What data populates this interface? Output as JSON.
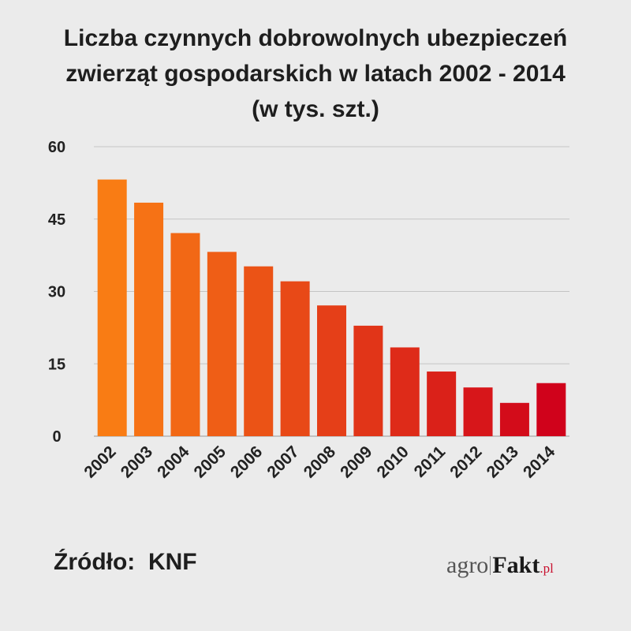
{
  "title_lines": [
    "Liczba czynnych dobrowolnych ubezpieczeń",
    "zwierząt gospodarskich w latach 2002 - 2014",
    "(w tys. szt.)"
  ],
  "source_text": "Źródło:  KNF",
  "logo": {
    "part1": "agro",
    "part2": "Fakt",
    "part3": ".pl"
  },
  "chart_data": {
    "type": "bar",
    "title": "Liczba czynnych dobrowolnych ubezpieczeń zwierząt gospodarskich w latach 2002 - 2014 (w tys. szt.)",
    "categories": [
      "2002",
      "2003",
      "2004",
      "2005",
      "2006",
      "2007",
      "2008",
      "2009",
      "2010",
      "2011",
      "2012",
      "2013",
      "2014"
    ],
    "values": [
      53.2,
      48.4,
      42.1,
      38.2,
      35.2,
      32.1,
      27.1,
      22.9,
      18.4,
      13.4,
      10.1,
      6.9,
      11.0
    ],
    "xlabel": "",
    "ylabel": "",
    "ylim": [
      0,
      60
    ],
    "yticks": [
      0,
      15,
      30,
      45,
      60
    ],
    "grid": true,
    "colors": [
      "#f97c14",
      "#d0021b"
    ]
  }
}
